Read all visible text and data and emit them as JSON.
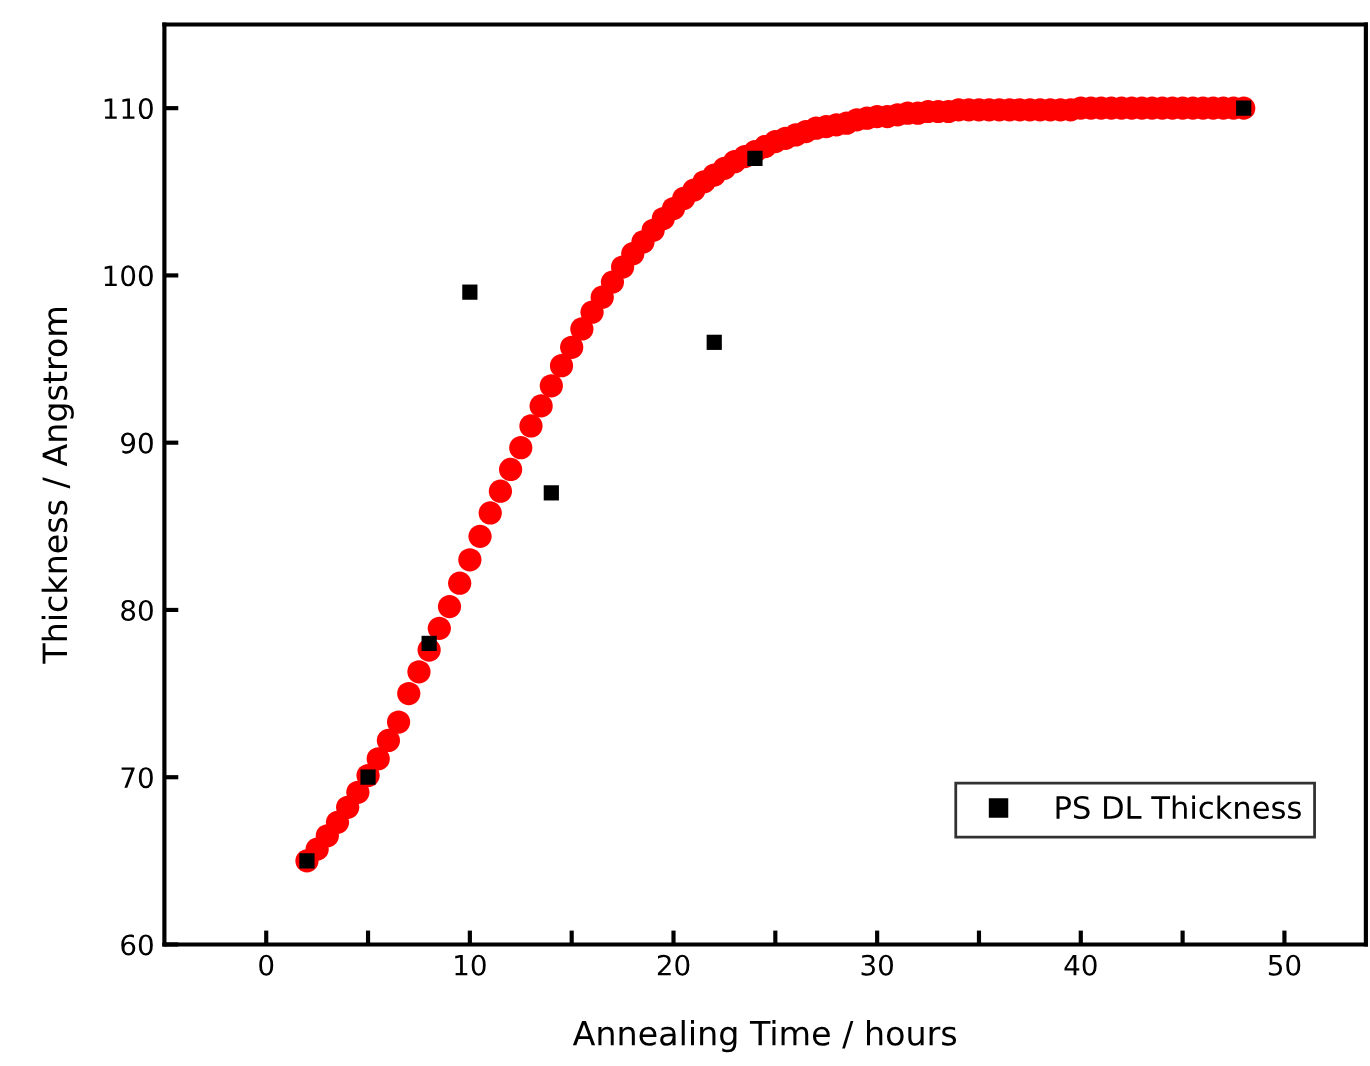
{
  "chart_data": {
    "type": "scatter",
    "xlabel": "Annealing Time / hours",
    "ylabel": "Thickness / Angstrom",
    "xlim": [
      -5,
      54
    ],
    "ylim": [
      60,
      115
    ],
    "xticks": [
      0,
      {
        "value": 5,
        "label": null
      },
      10,
      {
        "value": 15,
        "label": null
      },
      20,
      {
        "value": 25,
        "label": null
      },
      30,
      {
        "value": 35,
        "label": null
      },
      40,
      {
        "value": 45,
        "label": null
      },
      50
    ],
    "yticks": [
      60,
      70,
      80,
      90,
      100,
      110
    ],
    "grid": false,
    "legend": "bottom right",
    "series": [
      {
        "color": "#ff0000",
        "marker": "circle",
        "x": [
          2,
          2.5,
          3,
          3.5,
          4,
          4.5,
          5,
          5.5,
          6,
          6.5,
          7,
          7.5,
          8,
          8.5,
          9,
          9.5,
          10,
          10.5,
          11,
          11.5,
          12,
          12.5,
          13,
          13.5,
          14,
          14.5,
          15,
          15.5,
          16,
          16.5,
          17,
          17.5,
          18,
          18.5,
          19,
          19.5,
          20,
          20.5,
          21,
          21.5,
          22,
          22.5,
          23,
          23.5,
          24,
          24.5,
          25,
          25.5,
          26,
          26.5,
          27,
          27.5,
          28,
          28.5,
          29,
          29.5,
          30,
          30.5,
          31,
          31.5,
          32,
          32.5,
          33,
          33.5,
          34,
          34.5,
          35,
          35.5,
          36,
          36.5,
          37,
          37.5,
          38,
          38.5,
          39,
          39.5,
          40,
          40.5,
          41,
          41.5,
          42,
          42.5,
          43,
          43.5,
          44,
          44.5,
          45,
          45.5,
          46,
          46.5,
          47,
          47.5,
          48
        ],
        "values": [
          65.0,
          65.7,
          66.5,
          67.3,
          68.2,
          69.1,
          70.1,
          71.1,
          72.2,
          73.3,
          75.0,
          76.3,
          77.6,
          78.9,
          80.2,
          81.6,
          83.0,
          84.4,
          85.8,
          87.1,
          88.4,
          89.7,
          91.0,
          92.2,
          93.4,
          94.6,
          95.7,
          96.8,
          97.8,
          98.7,
          99.6,
          100.5,
          101.3,
          102.0,
          102.7,
          103.4,
          104.0,
          104.6,
          105.1,
          105.6,
          106.0,
          106.4,
          106.8,
          107.1,
          107.4,
          107.7,
          108.0,
          108.2,
          108.4,
          108.6,
          108.8,
          108.9,
          109.0,
          109.1,
          109.3,
          109.4,
          109.5,
          109.5,
          109.6,
          109.7,
          109.7,
          109.8,
          109.8,
          109.8,
          109.9,
          109.9,
          109.9,
          109.9,
          109.9,
          109.9,
          109.9,
          109.9,
          109.9,
          109.9,
          109.9,
          109.9,
          110.0,
          110.0,
          110.0,
          110.0,
          110.0,
          110.0,
          110.0,
          110.0,
          110.0,
          110.0,
          110.0,
          110.0,
          110.0,
          110.0,
          110.0,
          110.0,
          110.0
        ]
      },
      {
        "name": "PS DL Thickness",
        "color": "#000000",
        "marker": "square",
        "x": [
          2,
          5,
          8,
          10,
          14,
          22,
          24,
          48
        ],
        "values": [
          65,
          70,
          78,
          99,
          87,
          96,
          107,
          110
        ]
      }
    ]
  }
}
